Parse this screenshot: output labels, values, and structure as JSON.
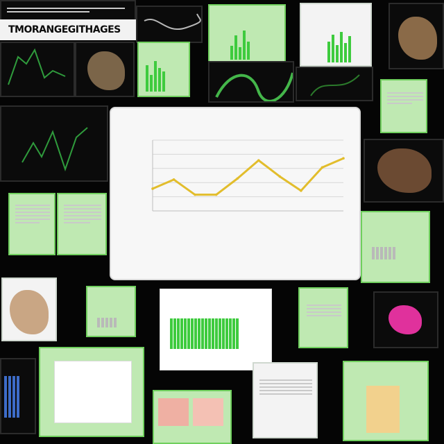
{
  "header": {
    "title": "TMORANGEGITHAGES"
  },
  "chart_data": {
    "type": "line",
    "categories": [
      "",
      "",
      "",
      "",
      "",
      "",
      "",
      "",
      "",
      ""
    ],
    "values": [
      2.2,
      3.1,
      1.6,
      1.6,
      3.2,
      5.0,
      3.4,
      2.0,
      4.3,
      5.2
    ],
    "title": "",
    "xlabel": "",
    "ylabel": "",
    "ylim": [
      0,
      7
    ],
    "grid": true,
    "color": "#e2bd2c"
  }
}
